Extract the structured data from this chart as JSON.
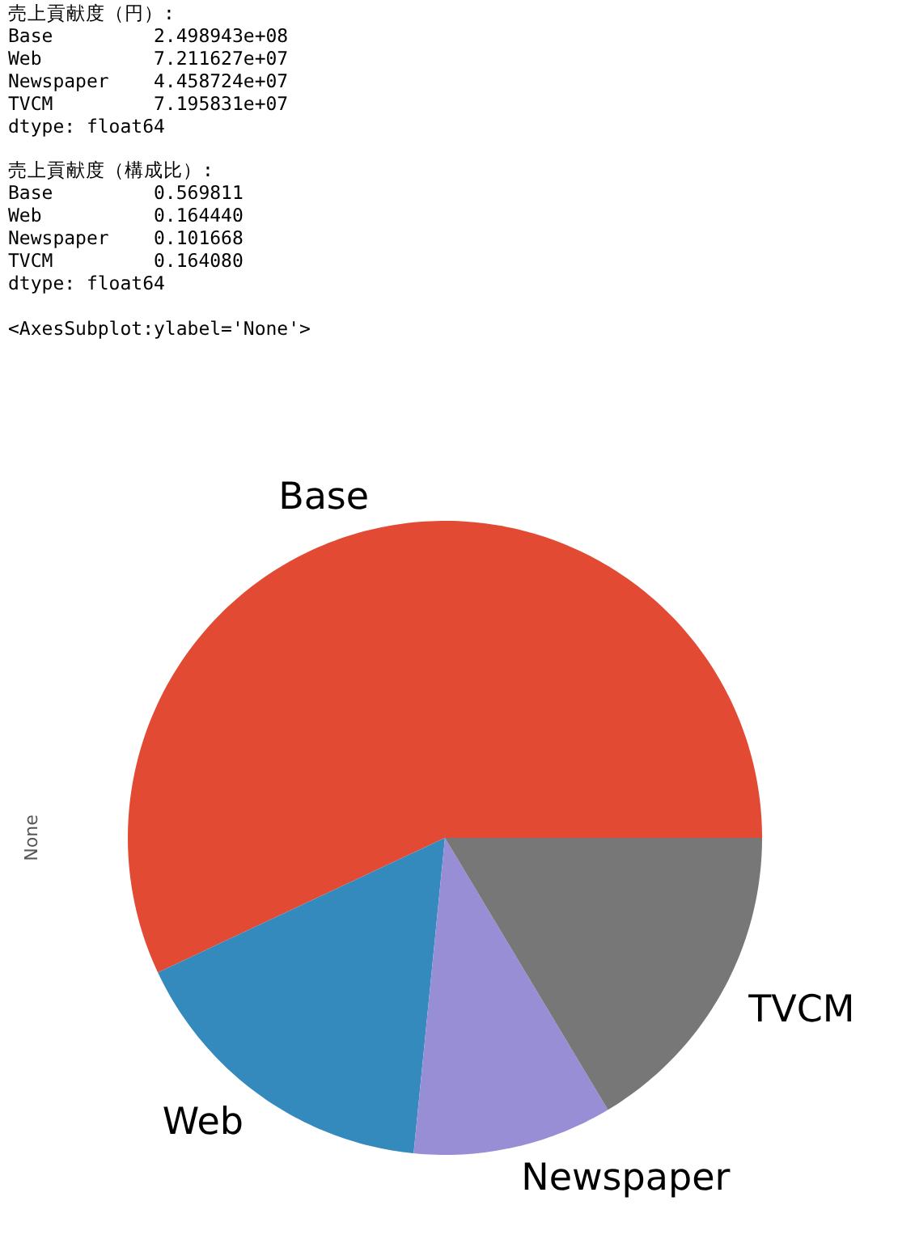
{
  "chart_data": {
    "type": "pie",
    "ylabel": "None",
    "categories": [
      "Base",
      "Web",
      "Newspaper",
      "TVCM"
    ],
    "values": [
      56.9811,
      16.444,
      10.1668,
      16.408
    ],
    "colors": [
      "#e24a33",
      "#348abd",
      "#988ed5",
      "#777777"
    ],
    "annotations": [
      "売上貢献度（円）:\nBase         2.498943e+08\nWeb          7.211627e+07\nNewspaper    4.458724e+07\nTVCM         7.195831e+07\ndtype: float64",
      "売上貢献度（構成比）:\nBase         0.569811\nWeb          0.164440\nNewspaper    0.101668\nTVCM         0.164080\ndtype: float64",
      "<AxesSubplot:ylabel='None'>"
    ]
  }
}
